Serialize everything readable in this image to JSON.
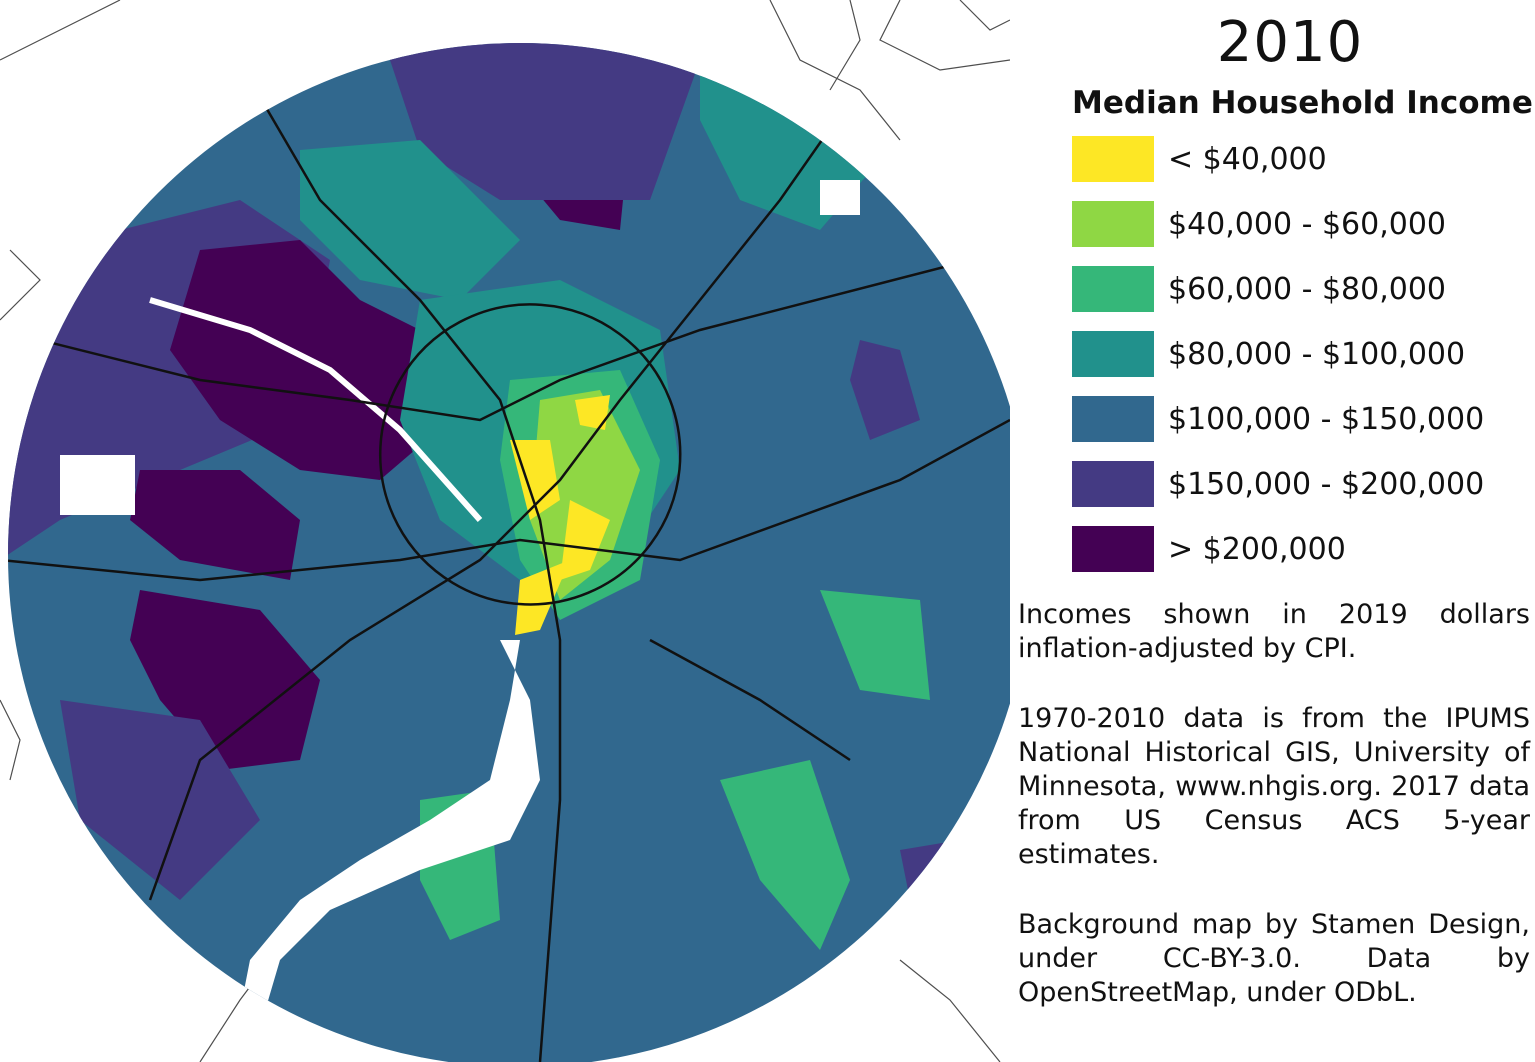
{
  "title": "2010",
  "legend": {
    "heading": "Median Household Income",
    "items": [
      {
        "label": "< $40,000",
        "color": "#fde725"
      },
      {
        "label": "$40,000 - $60,000",
        "color": "#8fd744"
      },
      {
        "label": "$60,000 - $80,000",
        "color": "#35b779"
      },
      {
        "label": "$80,000 - $100,000",
        "color": "#21918c"
      },
      {
        "label": "$100,000 - $150,000",
        "color": "#31688e"
      },
      {
        "label": "$150,000 - $200,000",
        "color": "#443a83"
      },
      {
        "label": "> $200,000",
        "color": "#440154"
      }
    ]
  },
  "notes": [
    "Incomes shown in 2019 dollars inflation-adjusted by CPI.",
    "1970-2010 data is from the IPUMS National Historical GIS, University of Minnesota, www.nhgis.org. 2017 data from US Census ACS 5-year estimates.",
    "Background map by Stamen Design, under CC-BY-3.0. Data by OpenStreetMap, under ODbL."
  ]
}
